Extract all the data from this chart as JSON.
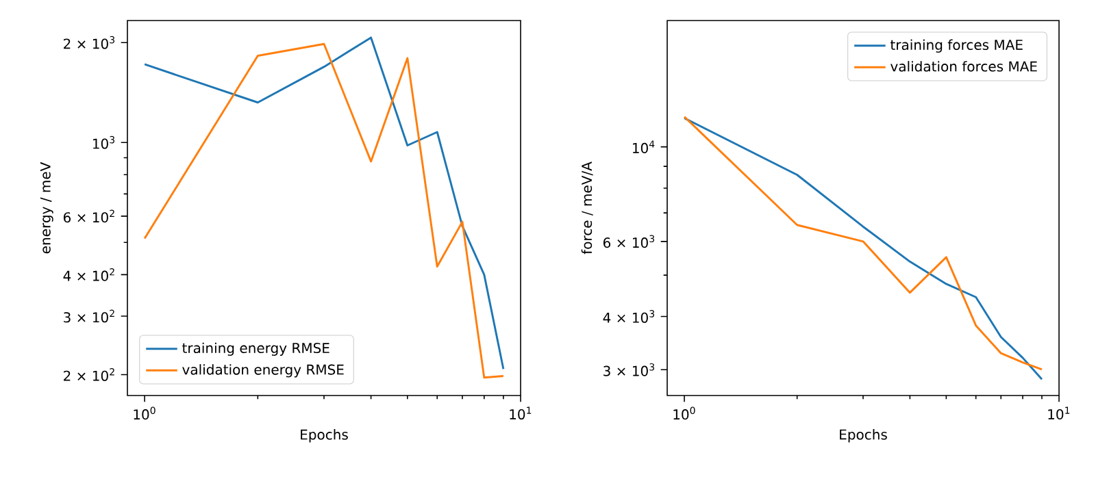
{
  "chart_data": [
    {
      "type": "line",
      "xlabel": "Epochs",
      "ylabel": "energy / meV",
      "log": "xy",
      "legend": "bottom left",
      "x": [
        1,
        2,
        3,
        4,
        5,
        6,
        7,
        8,
        9
      ],
      "xlim": [
        0.9,
        10
      ],
      "ylim": [
        173,
        2330
      ],
      "xticks": [
        {
          "value": 1,
          "label": "10$^{0}$"
        },
        {
          "value": 2,
          "label": null
        },
        {
          "value": 3,
          "label": null
        },
        {
          "value": 4,
          "label": null
        },
        {
          "value": 5,
          "label": null
        },
        {
          "value": 6,
          "label": null
        },
        {
          "value": 7,
          "label": null
        },
        {
          "value": 8,
          "label": null
        },
        {
          "value": 9,
          "label": null
        },
        {
          "value": 10,
          "label": "10$^{1}$"
        }
      ],
      "yticks": [
        {
          "value": 200,
          "label": "2 × 10$^{2}$"
        },
        {
          "value": 300,
          "label": "3 × 10$^{2}$"
        },
        {
          "value": 400,
          "label": "4 × 10$^{2}$"
        },
        {
          "value": 500,
          "label": null
        },
        {
          "value": 600,
          "label": "6 × 10$^{2}$"
        },
        {
          "value": 700,
          "label": null
        },
        {
          "value": 800,
          "label": null
        },
        {
          "value": 900,
          "label": null
        },
        {
          "value": 1000,
          "label": "10$^{3}$"
        },
        {
          "value": 2000,
          "label": "2 × 10$^{3}$"
        }
      ],
      "series": [
        {
          "name": "training energy RMSE",
          "color": "#1f77b4",
          "values": [
            1720,
            1320,
            1690,
            2070,
            980,
            1075,
            560,
            400,
            208
          ]
        },
        {
          "name": "validation energy RMSE",
          "color": "#ff7f0e",
          "values": [
            514,
            1825,
            1980,
            877,
            1795,
            423,
            577,
            196,
            198
          ]
        }
      ]
    },
    {
      "type": "line",
      "xlabel": "Epochs",
      "ylabel": "force / meV/A",
      "log": "xy",
      "legend": "top right",
      "x": [
        1,
        2,
        3,
        4,
        5,
        6,
        7,
        8,
        9
      ],
      "xlim": [
        0.9,
        10
      ],
      "ylim": [
        2610,
        19800
      ],
      "xticks": [
        {
          "value": 1,
          "label": "10$^{0}$"
        },
        {
          "value": 2,
          "label": null
        },
        {
          "value": 3,
          "label": null
        },
        {
          "value": 4,
          "label": null
        },
        {
          "value": 5,
          "label": null
        },
        {
          "value": 6,
          "label": null
        },
        {
          "value": 7,
          "label": null
        },
        {
          "value": 8,
          "label": null
        },
        {
          "value": 9,
          "label": null
        },
        {
          "value": 10,
          "label": "10$^{1}$"
        }
      ],
      "yticks": [
        {
          "value": 3000,
          "label": "3 × 10$^{3}$"
        },
        {
          "value": 4000,
          "label": "4 × 10$^{3}$"
        },
        {
          "value": 5000,
          "label": null
        },
        {
          "value": 6000,
          "label": "6 × 10$^{3}$"
        },
        {
          "value": 7000,
          "label": null
        },
        {
          "value": 8000,
          "label": null
        },
        {
          "value": 9000,
          "label": null
        },
        {
          "value": 10000,
          "label": "10$^{4}$"
        }
      ],
      "series": [
        {
          "name": "training forces MAE",
          "color": "#1f77b4",
          "values": [
            11680,
            8600,
            6500,
            5380,
            4770,
            4440,
            3580,
            3200,
            2850
          ]
        },
        {
          "name": "validation forces MAE",
          "color": "#ff7f0e",
          "values": [
            11770,
            6560,
            6000,
            4550,
            5510,
            3810,
            3280,
            3120,
            3005
          ]
        }
      ]
    }
  ]
}
